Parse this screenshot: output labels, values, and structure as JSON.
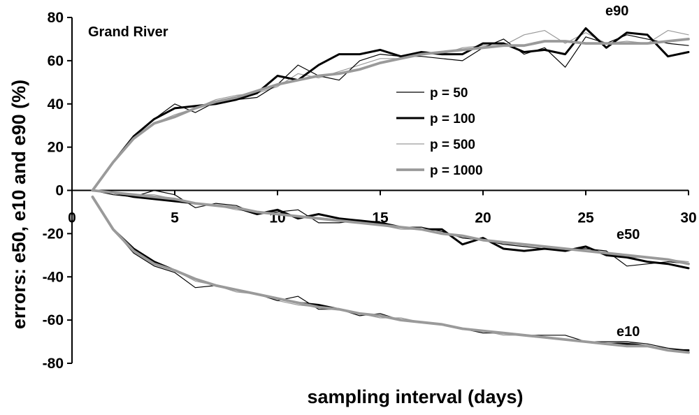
{
  "chart_data": {
    "type": "line",
    "title": "",
    "xlabel": "sampling interval (days)",
    "ylabel": "errors: e50, e10 and e90 (%)",
    "xlim": [
      0,
      30
    ],
    "ylim": [
      -80,
      80
    ],
    "xticks": [
      0,
      5,
      10,
      15,
      20,
      25,
      30
    ],
    "yticks": [
      -80,
      -60,
      -40,
      -20,
      0,
      20,
      40,
      60,
      80
    ],
    "x": [
      1,
      2,
      3,
      4,
      5,
      6,
      7,
      8,
      9,
      10,
      11,
      12,
      13,
      14,
      15,
      16,
      17,
      18,
      19,
      20,
      21,
      22,
      23,
      24,
      25,
      26,
      27,
      28,
      29,
      30
    ],
    "grid": false,
    "legend_position": "center-right",
    "annotations": [
      {
        "text": "Grand River",
        "role": "site-label"
      },
      {
        "text": "e90",
        "role": "curve-label"
      },
      {
        "text": "e50",
        "role": "curve-label"
      },
      {
        "text": "e10",
        "role": "curve-label"
      }
    ],
    "styles": [
      {
        "name": "p = 50",
        "color": "#000000",
        "width": 1.2
      },
      {
        "name": "p = 100",
        "color": "#000000",
        "width": 3
      },
      {
        "name": "p = 500",
        "color": "#9a9a9a",
        "width": 1.2
      },
      {
        "name": "p = 1000",
        "color": "#9a9a9a",
        "width": 3.8
      }
    ],
    "groups": [
      {
        "label": "e90",
        "series": [
          {
            "name": "p = 50",
            "values": [
              0,
              13,
              25,
              33,
              40,
              36,
              41,
              42,
              43,
              49,
              58,
              53,
              51,
              60,
              63,
              62,
              62,
              61,
              60,
              66,
              70,
              63,
              66,
              57,
              71,
              68,
              72,
              70,
              68,
              67
            ]
          },
          {
            "name": "p = 100",
            "values": [
              0,
              13,
              25,
              33,
              38,
              39,
              40,
              42,
              45,
              53,
              51,
              58,
              63,
              63,
              65,
              62,
              64,
              63,
              63,
              68,
              68,
              64,
              65,
              63,
              75,
              66,
              73,
              72,
              62,
              64
            ]
          },
          {
            "name": "p = 500",
            "values": [
              0,
              13,
              24,
              31,
              35,
              38,
              42,
              44,
              45,
              48,
              54,
              52,
              55,
              58,
              61,
              61,
              64,
              63,
              66,
              67,
              67,
              72,
              74,
              68,
              73,
              68,
              69,
              68,
              74,
              72
            ]
          },
          {
            "name": "p = 1000",
            "values": [
              0,
              13,
              24,
              31,
              34,
              38,
              41,
              43,
              46,
              49,
              51,
              53,
              54,
              56,
              59,
              61,
              63,
              64,
              65,
              66,
              67,
              67,
              69,
              69,
              68,
              68,
              68,
              68,
              69,
              70
            ]
          }
        ]
      },
      {
        "label": "e50",
        "series": [
          {
            "name": "p = 50",
            "values": [
              0,
              -2,
              -3,
              0,
              -2,
              -8,
              -6,
              -7,
              -11,
              -10,
              -9,
              -15,
              -15,
              -14,
              -16,
              -17,
              -17,
              -19,
              -22,
              -23,
              -25,
              -26,
              -27,
              -27,
              -27,
              -28,
              -35,
              -34,
              -33,
              -34
            ]
          },
          {
            "name": "p = 100",
            "values": [
              0,
              -1,
              -3,
              -4,
              -5,
              -6,
              -7,
              -8,
              -11,
              -9,
              -13,
              -11,
              -13,
              -14,
              -15,
              -17,
              -18,
              -18,
              -25,
              -22,
              -27,
              -28,
              -27,
              -28,
              -26,
              -30,
              -31,
              -33,
              -34,
              -36
            ]
          },
          {
            "name": "p = 500",
            "values": [
              0,
              -1,
              -2,
              -2,
              -4,
              -6,
              -7,
              -9,
              -10,
              -11,
              -12,
              -13,
              -14,
              -15,
              -16,
              -18,
              -18,
              -20,
              -21,
              -23,
              -25,
              -25,
              -26,
              -27,
              -28,
              -29,
              -31,
              -31,
              -32,
              -33
            ]
          },
          {
            "name": "p = 1000",
            "values": [
              0,
              -1,
              -2,
              -3,
              -4,
              -6,
              -7,
              -8,
              -10,
              -11,
              -12,
              -13,
              -14,
              -15,
              -16,
              -17,
              -18,
              -20,
              -21,
              -23,
              -24,
              -25,
              -26,
              -27,
              -28,
              -29,
              -30,
              -31,
              -32,
              -34
            ]
          }
        ]
      },
      {
        "label": "e10",
        "series": [
          {
            "name": "p = 50",
            "values": [
              -3,
              -18,
              -29,
              -35,
              -38,
              -45,
              -44,
              -46,
              -48,
              -51,
              -49,
              -55,
              -55,
              -58,
              -57,
              -60,
              -61,
              -62,
              -64,
              -66,
              -66,
              -67,
              -67,
              -67,
              -70,
              -70,
              -70,
              -71,
              -73,
              -74
            ]
          },
          {
            "name": "p = 100",
            "values": [
              -3,
              -18,
              -27,
              -33,
              -37,
              -41,
              -44,
              -46,
              -48,
              -50,
              -52,
              -53,
              -55,
              -57,
              -58,
              -60,
              -61,
              -62,
              -64,
              -65,
              -66,
              -67,
              -68,
              -69,
              -70,
              -71,
              -71,
              -72,
              -74,
              -74
            ]
          },
          {
            "name": "p = 500",
            "values": [
              -3,
              -18,
              -28,
              -34,
              -37,
              -42,
              -44,
              -47,
              -48,
              -51,
              -53,
              -54,
              -55,
              -57,
              -59,
              -59,
              -61,
              -62,
              -64,
              -65,
              -67,
              -67,
              -68,
              -69,
              -70,
              -71,
              -70,
              -72,
              -73,
              -75
            ]
          },
          {
            "name": "p = 1000",
            "values": [
              -3,
              -18,
              -28,
              -34,
              -37,
              -41,
              -44,
              -46,
              -48,
              -50,
              -52,
              -54,
              -55,
              -57,
              -58,
              -60,
              -61,
              -62,
              -64,
              -65,
              -66,
              -67,
              -68,
              -69,
              -70,
              -71,
              -72,
              -72,
              -74,
              -75
            ]
          }
        ]
      }
    ]
  }
}
